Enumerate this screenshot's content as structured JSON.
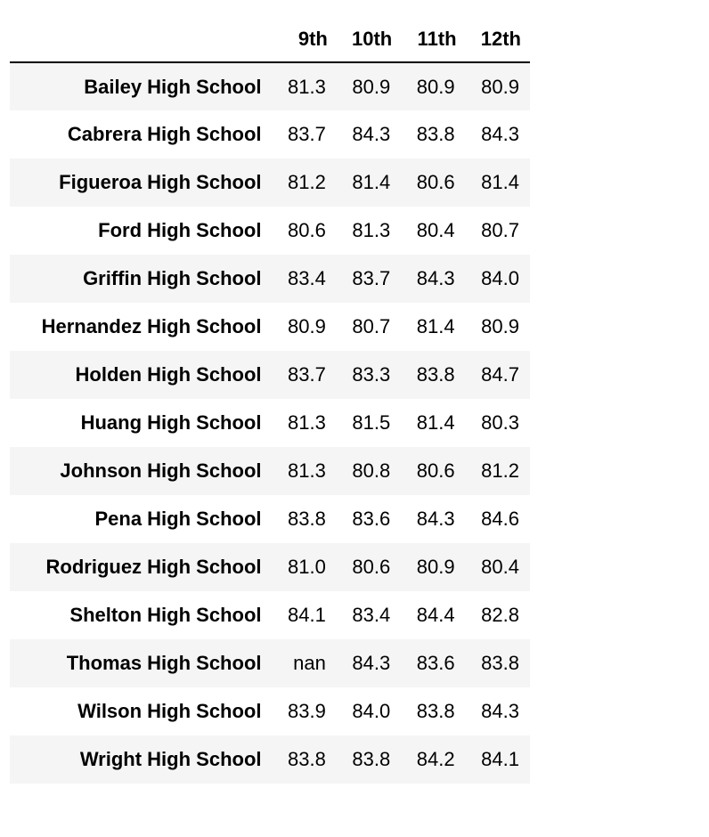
{
  "table": {
    "index_header": "",
    "columns": [
      "9th",
      "10th",
      "11th",
      "12th"
    ],
    "rows": [
      {
        "school": "Bailey High School",
        "values": [
          "81.3",
          "80.9",
          "80.9",
          "80.9"
        ]
      },
      {
        "school": "Cabrera High School",
        "values": [
          "83.7",
          "84.3",
          "83.8",
          "84.3"
        ]
      },
      {
        "school": "Figueroa High School",
        "values": [
          "81.2",
          "81.4",
          "80.6",
          "81.4"
        ]
      },
      {
        "school": "Ford High School",
        "values": [
          "80.6",
          "81.3",
          "80.4",
          "80.7"
        ]
      },
      {
        "school": "Griffin High School",
        "values": [
          "83.4",
          "83.7",
          "84.3",
          "84.0"
        ]
      },
      {
        "school": "Hernandez High School",
        "values": [
          "80.9",
          "80.7",
          "81.4",
          "80.9"
        ]
      },
      {
        "school": "Holden High School",
        "values": [
          "83.7",
          "83.3",
          "83.8",
          "84.7"
        ]
      },
      {
        "school": "Huang High School",
        "values": [
          "81.3",
          "81.5",
          "81.4",
          "80.3"
        ]
      },
      {
        "school": "Johnson High School",
        "values": [
          "81.3",
          "80.8",
          "80.6",
          "81.2"
        ]
      },
      {
        "school": "Pena High School",
        "values": [
          "83.8",
          "83.6",
          "84.3",
          "84.6"
        ]
      },
      {
        "school": "Rodriguez High School",
        "values": [
          "81.0",
          "80.6",
          "80.9",
          "80.4"
        ]
      },
      {
        "school": "Shelton High School",
        "values": [
          "84.1",
          "83.4",
          "84.4",
          "82.8"
        ]
      },
      {
        "school": "Thomas High School",
        "values": [
          "nan",
          "84.3",
          "83.6",
          "83.8"
        ]
      },
      {
        "school": "Wilson High School",
        "values": [
          "83.9",
          "84.0",
          "83.8",
          "84.3"
        ]
      },
      {
        "school": "Wright High School",
        "values": [
          "83.8",
          "83.8",
          "84.2",
          "84.1"
        ]
      }
    ]
  },
  "colors": {
    "stripe": "#f5f5f5",
    "rule": "#000000",
    "text": "#000000",
    "background": "#ffffff"
  }
}
